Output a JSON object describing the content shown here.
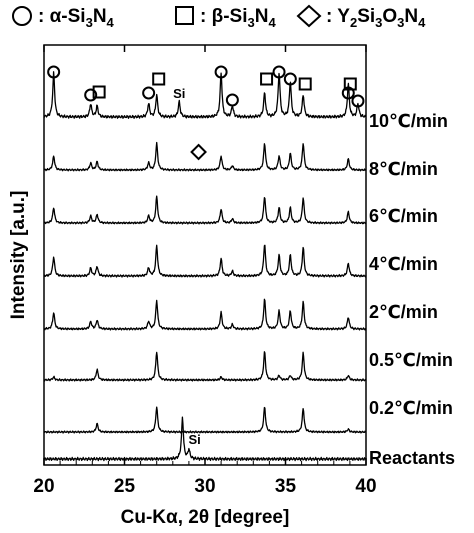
{
  "chart_data": {
    "type": "line",
    "title": "",
    "xlabel": "Cu-Kα, 2θ [degree]",
    "ylabel": "Intensity [a.u.]",
    "xlim": [
      20,
      40
    ],
    "x_ticks": [
      20,
      25,
      30,
      35,
      40
    ],
    "x_tick_labels": [
      "20",
      "25",
      "30",
      "35",
      "40"
    ],
    "y_ticks": "none",
    "grid": false,
    "legend": {
      "placement": "top",
      "entries": [
        {
          "symbol": "circle",
          "label": "α-Si",
          "sub1": "3",
          "mid": "N",
          "sub2": "4",
          "prefix": ": "
        },
        {
          "symbol": "square",
          "label": "β-Si",
          "sub1": "3",
          "mid": "N",
          "sub2": "4",
          "prefix": ": "
        },
        {
          "symbol": "diamond",
          "label": "Y",
          "sub1": "2",
          "mid": "Si",
          "sub2": "3",
          "mid2": "O",
          "sub3": "3",
          "mid3": "N",
          "sub4": "4",
          "prefix": ": "
        }
      ]
    },
    "series": [
      {
        "name": "10℃/min",
        "peaks": [
          [
            20.6,
            1.0
          ],
          [
            22.9,
            0.3
          ],
          [
            23.3,
            0.25
          ],
          [
            26.5,
            0.3
          ],
          [
            27.0,
            0.5
          ],
          [
            28.4,
            0.35
          ],
          [
            31.0,
            1.0
          ],
          [
            31.7,
            0.25
          ],
          [
            33.7,
            0.55
          ],
          [
            34.6,
            1.0
          ],
          [
            35.3,
            0.8
          ],
          [
            36.1,
            0.5
          ],
          [
            38.9,
            0.75
          ],
          [
            39.5,
            0.3
          ]
        ]
      },
      {
        "name": "8℃/min",
        "peaks": [
          [
            20.6,
            0.5
          ],
          [
            22.9,
            0.25
          ],
          [
            23.3,
            0.3
          ],
          [
            26.5,
            0.25
          ],
          [
            27.0,
            0.95
          ],
          [
            31.0,
            0.5
          ],
          [
            31.7,
            0.15
          ],
          [
            33.7,
            0.95
          ],
          [
            34.6,
            0.5
          ],
          [
            35.3,
            0.6
          ],
          [
            36.1,
            0.95
          ],
          [
            38.9,
            0.4
          ]
        ]
      },
      {
        "name": "6℃/min",
        "peaks": [
          [
            20.6,
            0.55
          ],
          [
            22.9,
            0.25
          ],
          [
            23.3,
            0.3
          ],
          [
            26.5,
            0.25
          ],
          [
            27.0,
            0.95
          ],
          [
            31.0,
            0.5
          ],
          [
            31.7,
            0.15
          ],
          [
            33.7,
            0.95
          ],
          [
            34.6,
            0.55
          ],
          [
            35.3,
            0.55
          ],
          [
            36.1,
            0.9
          ],
          [
            38.9,
            0.4
          ]
        ]
      },
      {
        "name": "4℃/min",
        "peaks": [
          [
            20.6,
            0.6
          ],
          [
            22.9,
            0.25
          ],
          [
            23.3,
            0.3
          ],
          [
            26.5,
            0.25
          ],
          [
            27.0,
            0.95
          ],
          [
            31.0,
            0.55
          ],
          [
            31.7,
            0.15
          ],
          [
            33.7,
            1.0
          ],
          [
            34.6,
            0.65
          ],
          [
            35.3,
            0.65
          ],
          [
            36.1,
            0.9
          ],
          [
            38.9,
            0.4
          ]
        ]
      },
      {
        "name": "2℃/min",
        "peaks": [
          [
            20.6,
            0.55
          ],
          [
            22.9,
            0.25
          ],
          [
            23.3,
            0.3
          ],
          [
            26.5,
            0.25
          ],
          [
            27.0,
            0.95
          ],
          [
            31.0,
            0.55
          ],
          [
            31.7,
            0.15
          ],
          [
            33.7,
            1.0
          ],
          [
            34.6,
            0.6
          ],
          [
            35.3,
            0.6
          ],
          [
            36.1,
            0.9
          ],
          [
            38.9,
            0.4
          ]
        ]
      },
      {
        "name": "0.5℃/min",
        "peaks": [
          [
            20.6,
            0.1
          ],
          [
            23.3,
            0.35
          ],
          [
            27.0,
            0.95
          ],
          [
            31.0,
            0.1
          ],
          [
            33.7,
            0.95
          ],
          [
            34.6,
            0.15
          ],
          [
            35.3,
            0.15
          ],
          [
            36.1,
            0.9
          ],
          [
            38.9,
            0.15
          ]
        ]
      },
      {
        "name": "0.2℃/min",
        "peaks": [
          [
            23.3,
            0.3
          ],
          [
            27.0,
            0.9
          ],
          [
            33.7,
            0.9
          ],
          [
            36.1,
            0.85
          ],
          [
            38.9,
            0.1
          ]
        ]
      },
      {
        "name": "Reactants",
        "peaks": [
          [
            28.6,
            0.9
          ],
          [
            29.0,
            0.2
          ]
        ]
      }
    ],
    "annotations": [
      {
        "type": "circle",
        "x": 20.6,
        "series": "10℃/min"
      },
      {
        "type": "circle",
        "x": 22.9,
        "series": "10℃/min"
      },
      {
        "type": "square",
        "x": 23.3,
        "series": "10℃/min"
      },
      {
        "type": "circle",
        "x": 26.5,
        "series": "10℃/min"
      },
      {
        "type": "square",
        "x": 27.0,
        "series": "10℃/min"
      },
      {
        "type": "text",
        "x": 28.4,
        "text": "Si",
        "series": "10℃/min"
      },
      {
        "type": "circle",
        "x": 31.0,
        "series": "10℃/min"
      },
      {
        "type": "circle",
        "x": 31.7,
        "series": "10℃/min"
      },
      {
        "type": "square",
        "x": 33.7,
        "series": "10℃/min"
      },
      {
        "type": "circle",
        "x": 34.6,
        "series": "10℃/min"
      },
      {
        "type": "circle",
        "x": 35.3,
        "series": "10℃/min"
      },
      {
        "type": "square",
        "x": 36.1,
        "series": "10℃/min"
      },
      {
        "type": "square",
        "x": 38.9,
        "series": "10℃/min"
      },
      {
        "type": "circle",
        "x": 38.9,
        "series": "10℃/min"
      },
      {
        "type": "circle",
        "x": 39.5,
        "series": "10℃/min"
      },
      {
        "type": "diamond",
        "x": 29.6,
        "series": "8℃/min"
      },
      {
        "type": "text",
        "x": 28.6,
        "text": "Si",
        "series": "Reactants"
      }
    ]
  }
}
